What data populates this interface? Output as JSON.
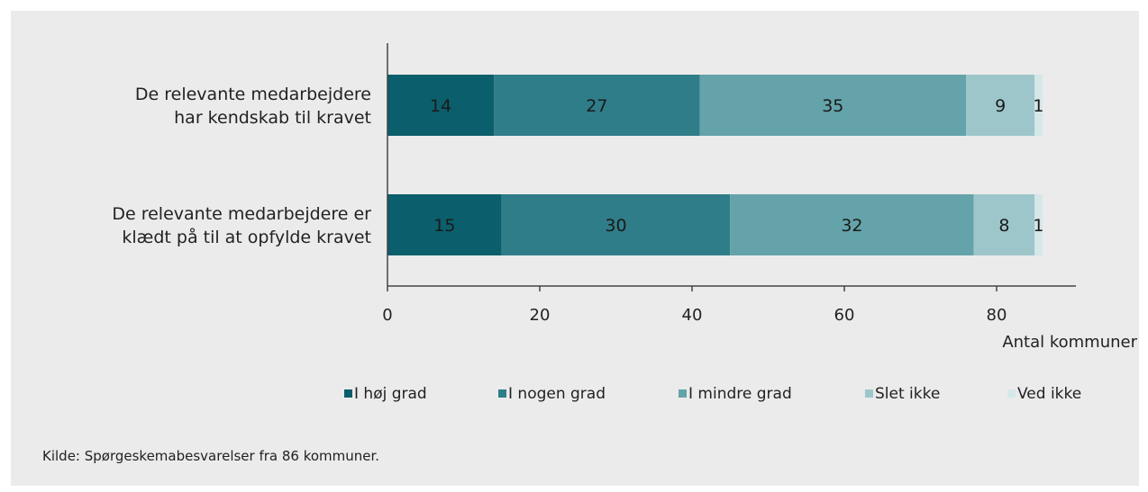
{
  "chart_data": {
    "type": "bar",
    "orientation": "horizontal",
    "stacked": true,
    "categories": [
      "De relevante medarbejdere har kendskab til kravet",
      "De relevante medarbejdere er klædt på til at opfylde kravet"
    ],
    "category_lines": [
      [
        "De relevante medarbejdere",
        "har kendskab til kravet"
      ],
      [
        "De relevante medarbejdere er",
        "klædt på til at opfylde kravet"
      ]
    ],
    "series": [
      {
        "name": "I høj grad",
        "values": [
          14,
          15
        ],
        "color": "#0b5e6b"
      },
      {
        "name": "I nogen grad",
        "values": [
          27,
          30
        ],
        "color": "#2f7d88"
      },
      {
        "name": "I mindre grad",
        "values": [
          35,
          32
        ],
        "color": "#64a3aa"
      },
      {
        "name": "Slet ikke",
        "values": [
          9,
          8
        ],
        "color": "#9dc6cb"
      },
      {
        "name": "Ved ikke",
        "values": [
          1,
          1
        ],
        "color": "#d4e7e9"
      }
    ],
    "xlabel": "Antal kommuner",
    "xlim": [
      0,
      90
    ],
    "xticks": [
      0,
      20,
      40,
      60,
      80
    ],
    "grid": false,
    "legend_position": "bottom"
  },
  "source_note": "Kilde:  Spørgeskemabesvarelser fra 86 kommuner."
}
